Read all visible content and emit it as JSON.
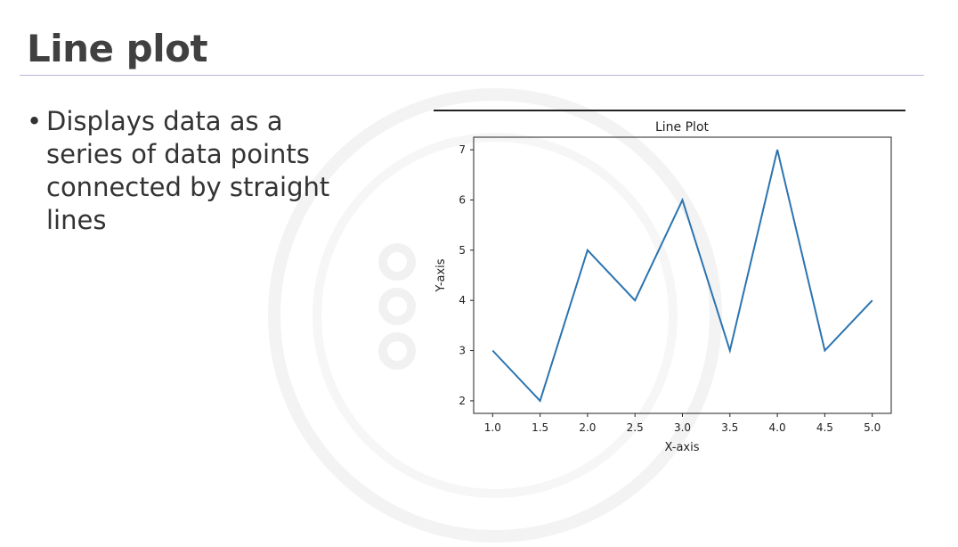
{
  "slide": {
    "title": "Line plot",
    "bullet": "Displays data as a series of data points connected by straight lines"
  },
  "colors": {
    "line": "#2c74b0",
    "title_rule": "#b8b4dc",
    "title_text": "#404040"
  },
  "chart_data": {
    "type": "line",
    "title": "Line Plot",
    "xlabel": "X-axis",
    "ylabel": "Y-axis",
    "x": [
      1.0,
      1.5,
      2.0,
      2.5,
      3.0,
      3.5,
      4.0,
      4.5,
      5.0
    ],
    "series": [
      {
        "values": [
          3,
          2,
          5,
          4,
          6,
          3,
          7,
          3,
          4
        ]
      }
    ],
    "xticks": [
      "1.0",
      "1.5",
      "2.0",
      "2.5",
      "3.0",
      "3.5",
      "4.0",
      "4.5",
      "5.0"
    ],
    "yticks": [
      "2",
      "3",
      "4",
      "5",
      "6",
      "7"
    ],
    "xlim": [
      0.8,
      5.2
    ],
    "ylim": [
      1.75,
      7.25
    ],
    "grid": false,
    "legend": "none"
  }
}
